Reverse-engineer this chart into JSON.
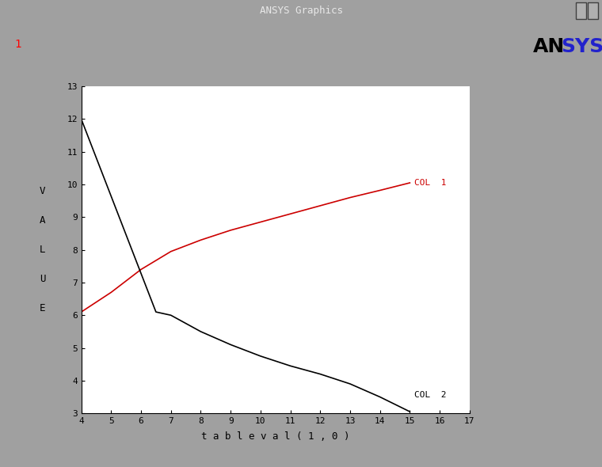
{
  "title_bar": "ANSYS Graphics",
  "plot_number": "1",
  "xlabel": "t a b l e v a l ( 1 , 0 )",
  "ylabel": "VALUE",
  "xlim": [
    4,
    17
  ],
  "ylim": [
    3,
    13
  ],
  "xticks": [
    4,
    5,
    6,
    7,
    8,
    9,
    10,
    11,
    12,
    13,
    14,
    15,
    16,
    17
  ],
  "yticks": [
    3,
    4,
    5,
    6,
    7,
    8,
    9,
    10,
    11,
    12,
    13
  ],
  "col1_x": [
    4.0,
    5.0,
    6.0,
    7.0,
    8.0,
    9.0,
    10.0,
    11.0,
    12.0,
    13.0,
    14.0,
    15.0
  ],
  "col1_y": [
    6.1,
    6.7,
    7.4,
    7.95,
    8.3,
    8.6,
    8.85,
    9.1,
    9.35,
    9.6,
    9.82,
    10.05
  ],
  "col2_x": [
    4.0,
    6.5,
    7.0,
    8.0,
    9.0,
    10.0,
    11.0,
    12.0,
    13.0,
    14.0,
    15.0
  ],
  "col2_y": [
    12.0,
    6.1,
    6.0,
    5.5,
    5.1,
    4.75,
    4.45,
    4.2,
    3.9,
    3.5,
    3.05
  ],
  "col1_color": "#cc0000",
  "col2_color": "#000000",
  "col1_label": "COL  1",
  "col2_label": "COL  2",
  "background_outer": "#a0a0a0",
  "background_inner": "#ffffff",
  "ansys_an_color": "#000000",
  "ansys_sys_color": "#2222cc",
  "font_color": "#000000",
  "tick_label_size": 8,
  "axis_label_size": 9,
  "titlebar_color": "#909090"
}
